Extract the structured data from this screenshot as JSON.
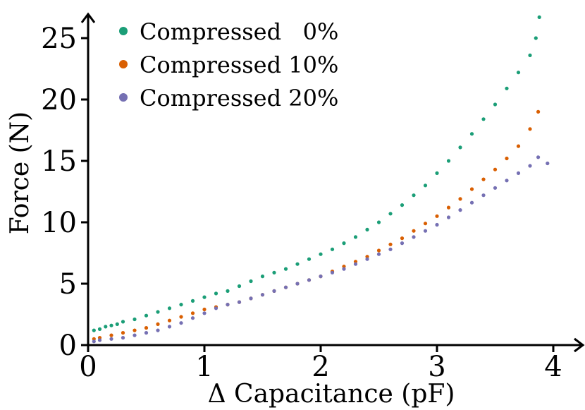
{
  "chart_data": {
    "type": "scatter",
    "title": "",
    "xlabel": "Δ Capacitance (pF)",
    "ylabel": "Force (N)",
    "xlim": [
      0,
      4.2
    ],
    "ylim": [
      0,
      27
    ],
    "xticks": [
      0,
      1,
      2,
      3,
      4
    ],
    "yticks": [
      0,
      5,
      10,
      15,
      20,
      25
    ],
    "xtick_labels": [
      "0",
      "1",
      "2",
      "3",
      "4"
    ],
    "ytick_labels": [
      "0",
      "5",
      "10",
      "15",
      "20",
      "25"
    ],
    "grid": false,
    "legend_position": "top-left",
    "series": [
      {
        "name": "Compressed 0%",
        "legend_label": "Compressed   0%",
        "color": "#1b9e77",
        "x": [
          0.05,
          0.1,
          0.15,
          0.2,
          0.25,
          0.3,
          0.4,
          0.5,
          0.6,
          0.7,
          0.8,
          0.9,
          1.0,
          1.1,
          1.2,
          1.3,
          1.4,
          1.5,
          1.6,
          1.7,
          1.8,
          1.9,
          2.0,
          2.1,
          2.2,
          2.3,
          2.4,
          2.5,
          2.6,
          2.7,
          2.8,
          2.9,
          3.0,
          3.1,
          3.2,
          3.3,
          3.4,
          3.5,
          3.6,
          3.7,
          3.8,
          3.85,
          3.88
        ],
        "y": [
          1.2,
          1.3,
          1.5,
          1.6,
          1.7,
          1.9,
          2.1,
          2.4,
          2.7,
          3.0,
          3.3,
          3.6,
          3.9,
          4.2,
          4.4,
          4.8,
          5.2,
          5.6,
          5.9,
          6.2,
          6.6,
          7.0,
          7.4,
          7.8,
          8.3,
          8.8,
          9.4,
          10.0,
          10.7,
          11.4,
          12.2,
          13.0,
          14.0,
          15.0,
          16.1,
          17.2,
          18.4,
          19.6,
          20.9,
          22.2,
          23.6,
          25.0,
          26.7
        ]
      },
      {
        "name": "Compressed 10%",
        "legend_label": "Compressed 10%",
        "color": "#d95f02",
        "x": [
          0.05,
          0.1,
          0.2,
          0.3,
          0.4,
          0.5,
          0.6,
          0.7,
          0.8,
          0.9,
          1.0,
          1.1,
          1.2,
          1.3,
          1.4,
          1.5,
          1.6,
          1.7,
          1.8,
          1.9,
          2.0,
          2.1,
          2.2,
          2.3,
          2.4,
          2.5,
          2.6,
          2.7,
          2.8,
          2.9,
          3.0,
          3.1,
          3.2,
          3.3,
          3.4,
          3.5,
          3.6,
          3.7,
          3.8,
          3.87
        ],
        "y": [
          0.5,
          0.6,
          0.8,
          1.0,
          1.2,
          1.4,
          1.7,
          2.0,
          2.3,
          2.6,
          2.9,
          3.1,
          3.3,
          3.5,
          3.8,
          4.1,
          4.4,
          4.7,
          5.0,
          5.3,
          5.6,
          6.0,
          6.4,
          6.8,
          7.2,
          7.7,
          8.2,
          8.7,
          9.3,
          9.9,
          10.5,
          11.2,
          11.9,
          12.7,
          13.5,
          14.3,
          15.2,
          16.2,
          17.6,
          19.0
        ]
      },
      {
        "name": "Compressed 20%",
        "legend_label": "Compressed 20%",
        "color": "#7570b3",
        "x": [
          0.05,
          0.1,
          0.2,
          0.3,
          0.4,
          0.5,
          0.6,
          0.7,
          0.8,
          0.9,
          1.0,
          1.1,
          1.2,
          1.3,
          1.4,
          1.5,
          1.6,
          1.7,
          1.8,
          1.9,
          2.0,
          2.1,
          2.2,
          2.3,
          2.4,
          2.5,
          2.6,
          2.7,
          2.8,
          2.9,
          3.0,
          3.1,
          3.2,
          3.3,
          3.4,
          3.5,
          3.6,
          3.7,
          3.8,
          3.87,
          3.95
        ],
        "y": [
          0.3,
          0.4,
          0.5,
          0.6,
          0.8,
          1.0,
          1.2,
          1.5,
          1.8,
          2.2,
          2.6,
          3.0,
          3.3,
          3.5,
          3.8,
          4.1,
          4.4,
          4.7,
          5.0,
          5.3,
          5.6,
          5.9,
          6.2,
          6.6,
          7.0,
          7.4,
          7.8,
          8.3,
          8.8,
          9.3,
          9.8,
          10.4,
          11.0,
          11.6,
          12.2,
          12.8,
          13.4,
          14.0,
          14.6,
          15.3,
          14.8
        ]
      }
    ]
  }
}
